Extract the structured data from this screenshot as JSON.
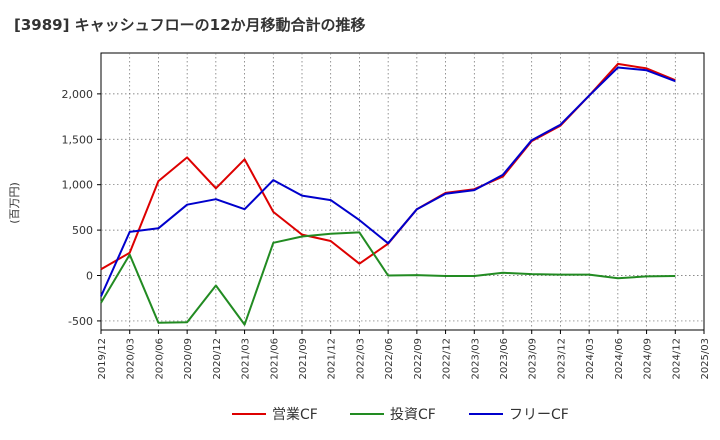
{
  "chart_data": {
    "type": "line",
    "title": "[3989]  キャッシュフローの12か月移動合計の推移",
    "ylabel": "(百万円)",
    "xlabel": "",
    "ylim": [
      -600,
      2450
    ],
    "yticks": [
      -500,
      0,
      500,
      1000,
      1500,
      2000
    ],
    "ytick_labels": [
      "-500",
      "0",
      "500",
      "1,000",
      "1,500",
      "2,000"
    ],
    "categories": [
      "2019/12",
      "2020/03",
      "2020/06",
      "2020/09",
      "2020/12",
      "2021/03",
      "2021/06",
      "2021/09",
      "2021/12",
      "2022/03",
      "2022/06",
      "2022/09",
      "2022/12",
      "2023/03",
      "2023/06",
      "2023/09",
      "2023/12",
      "2024/03",
      "2024/06",
      "2024/09",
      "2024/12",
      "2025/03"
    ],
    "grid": true,
    "legend_position": "bottom",
    "series": [
      {
        "name": "営業CF",
        "color": "#dd0000",
        "values": [
          70,
          250,
          1040,
          1300,
          960,
          1280,
          700,
          450,
          380,
          130,
          350,
          730,
          910,
          950,
          1090,
          1480,
          1650,
          1980,
          2330,
          2280,
          2150,
          null
        ]
      },
      {
        "name": "投資CF",
        "color": "#228b22",
        "values": [
          -300,
          230,
          -520,
          -515,
          -110,
          -540,
          360,
          430,
          460,
          475,
          0,
          5,
          -5,
          -5,
          30,
          15,
          10,
          10,
          -30,
          -10,
          -5,
          null
        ]
      },
      {
        "name": "フリーCF",
        "color": "#0000cc",
        "values": [
          -230,
          480,
          520,
          780,
          840,
          730,
          1050,
          880,
          830,
          610,
          355,
          730,
          900,
          940,
          1110,
          1490,
          1660,
          1980,
          2290,
          2260,
          2140,
          null
        ]
      }
    ]
  }
}
